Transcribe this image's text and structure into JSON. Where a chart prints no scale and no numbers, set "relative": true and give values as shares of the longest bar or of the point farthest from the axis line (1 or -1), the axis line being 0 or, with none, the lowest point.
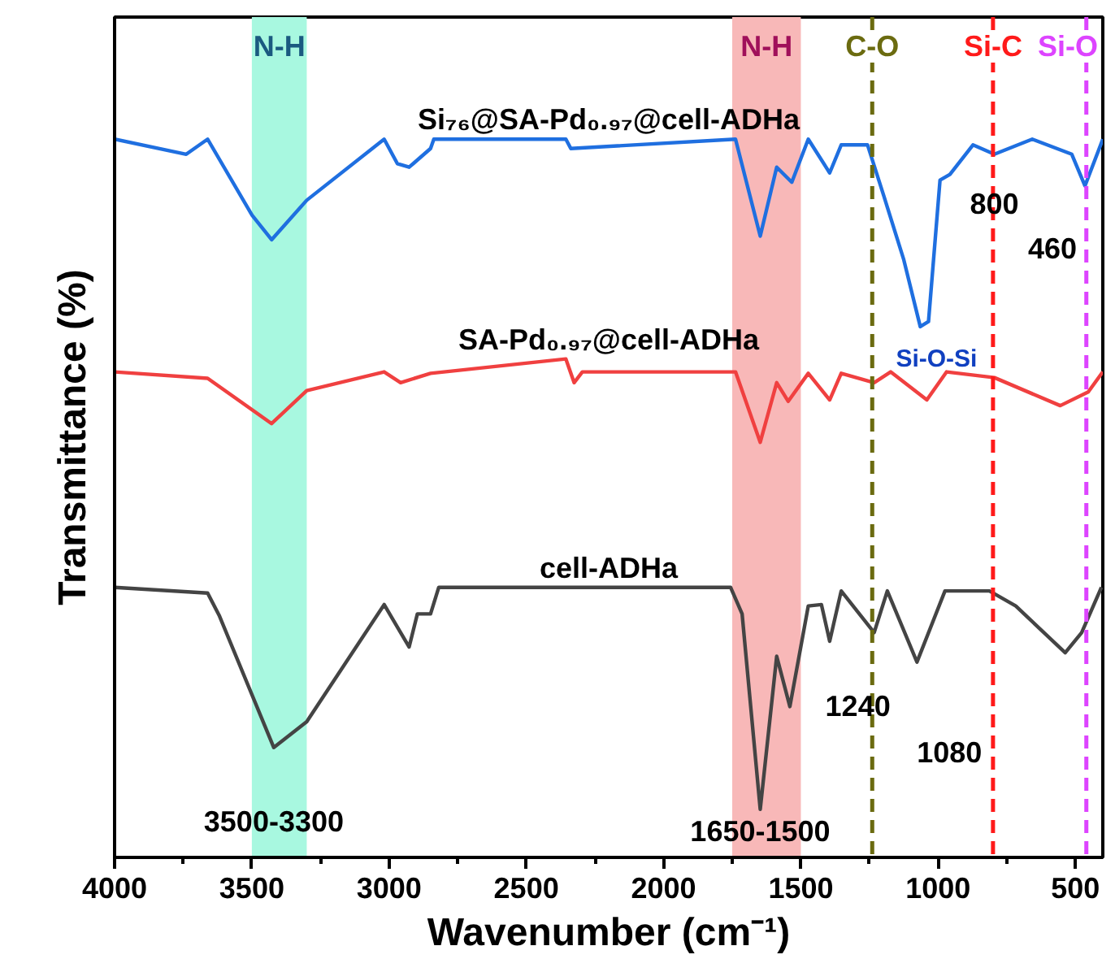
{
  "chart_data": {
    "type": "line",
    "relative": true,
    "xlabel": "Wavenumber (cm⁻¹)",
    "ylabel": "Transmittance (%)",
    "xlim": [
      4000,
      400
    ],
    "xticks": [
      4000,
      3500,
      3000,
      2500,
      2000,
      1500,
      1000,
      500
    ],
    "tick_labels": "x",
    "grid": false,
    "line_style": "solid",
    "marker": "none",
    "series": [
      {
        "name": "Si₇₆@SA-Pd₀.₉₇@cell-ADHa",
        "color": "#1f6fe0",
        "x": [
          4000,
          3739,
          3661,
          3499,
          3428,
          3300,
          3018,
          2970,
          2927,
          2849,
          2837,
          2356,
          2338,
          1738,
          1648,
          1588,
          1533,
          1473,
          1395,
          1353,
          1257,
          1197,
          1125,
          1065,
          1035,
          993,
          957,
          873,
          795,
          657,
          513,
          465,
          400
        ],
        "values": [
          1.0,
          0.979,
          1.0,
          0.894,
          0.86,
          0.915,
          1.0,
          0.966,
          0.961,
          0.987,
          1.0,
          1.0,
          0.987,
          1.0,
          0.865,
          0.961,
          0.94,
          1.0,
          0.953,
          0.992,
          0.992,
          0.92,
          0.832,
          0.739,
          0.746,
          0.943,
          0.951,
          0.992,
          0.979,
          1.0,
          0.979,
          0.935,
          1.0
        ]
      },
      {
        "name": "SA-Pd₀.₉₇@cell-ADHa",
        "color": "#f04040",
        "x": [
          4000,
          3661,
          3428,
          3300,
          3018,
          2958,
          2849,
          2356,
          2326,
          2296,
          1738,
          1648,
          1588,
          1546,
          1473,
          1395,
          1353,
          1233,
          1173,
          1041,
          969,
          795,
          555,
          453,
          400
        ],
        "values": [
          0.676,
          0.667,
          0.604,
          0.65,
          0.676,
          0.661,
          0.674,
          0.694,
          0.661,
          0.676,
          0.676,
          0.578,
          0.661,
          0.635,
          0.674,
          0.637,
          0.674,
          0.661,
          0.676,
          0.637,
          0.676,
          0.668,
          0.629,
          0.648,
          0.676
        ]
      },
      {
        "name": "cell-ADHa",
        "color": "#444444",
        "x": [
          4000,
          3661,
          3619,
          3420,
          3300,
          3018,
          2958,
          2927,
          2897,
          2849,
          2819,
          2374,
          1756,
          1714,
          1648,
          1588,
          1540,
          1473,
          1425,
          1395,
          1353,
          1233,
          1185,
          1077,
          975,
          813,
          717,
          537,
          477,
          405
        ],
        "values": [
          0.376,
          0.368,
          0.337,
          0.153,
          0.189,
          0.352,
          0.313,
          0.293,
          0.339,
          0.339,
          0.376,
          0.376,
          0.376,
          0.339,
          0.067,
          0.28,
          0.21,
          0.35,
          0.352,
          0.301,
          0.371,
          0.313,
          0.371,
          0.272,
          0.371,
          0.371,
          0.35,
          0.285,
          0.313,
          0.376
        ]
      }
    ],
    "bands": [
      {
        "axis": "x",
        "from": 3500,
        "to": 3300,
        "label": "N-H",
        "color": "#a8f8e0"
      },
      {
        "axis": "x",
        "from": 1750,
        "to": 1500,
        "label": "N-H",
        "color": "#f8b8b8"
      }
    ],
    "ref_lines": [
      {
        "axis": "x",
        "value": 1240,
        "label": "C-O",
        "color": "#6b6b10",
        "line_style": "dashed"
      },
      {
        "axis": "x",
        "value": 800,
        "label": "Si-C",
        "color": "#ff1a1a",
        "line_style": "dashed"
      },
      {
        "axis": "x",
        "value": 460,
        "label": "Si-O",
        "color": "#dd44ff",
        "line_style": "dashed"
      }
    ],
    "annotations": [
      {
        "text": "3500-3300",
        "x": 3420,
        "y": 0.153
      },
      {
        "text": "1650-1500",
        "x": 1648,
        "y": 0.067
      },
      {
        "text": "1240",
        "x": 1233,
        "y": 0.313
      },
      {
        "text": "1080",
        "x": 1077,
        "y": 0.272
      },
      {
        "text": "800",
        "x": 795,
        "y": 0.979
      },
      {
        "text": "460",
        "x": 465,
        "y": 0.935
      },
      {
        "text": "Si-O-Si",
        "x": 1065,
        "y": 0.739
      }
    ]
  }
}
